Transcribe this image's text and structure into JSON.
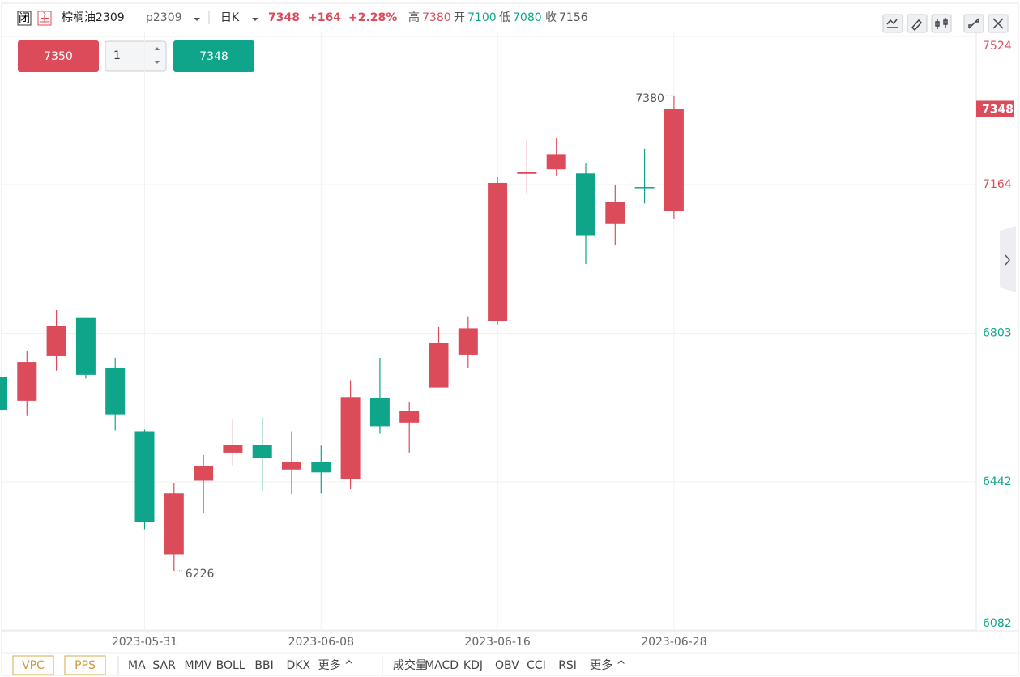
{
  "header": {
    "close_icon": "闭",
    "main_icon": "主",
    "name": "棕榈油2309",
    "code": "p2309",
    "period": "日K",
    "last": "7348",
    "change": "+164",
    "change_pct": "+2.28%",
    "high_label": "高",
    "high": "7380",
    "open_label": "开",
    "open": "7100",
    "low_label": "低",
    "low": "7080",
    "close_label": "收",
    "close": "7156"
  },
  "order": {
    "sell": "7350",
    "qty": "1",
    "buy": "7348"
  },
  "chart_data": {
    "type": "candlestick",
    "categories": [
      null,
      null,
      null,
      null,
      null,
      "2023-05-31",
      null,
      null,
      null,
      null,
      null,
      "2023-06-08",
      null,
      null,
      null,
      null,
      null,
      "2023-06-16",
      null,
      null,
      null,
      null,
      null,
      "2023-06-28"
    ],
    "open": [
      6697,
      6639,
      6749,
      6840,
      6718,
      6565,
      6266,
      6445,
      6513,
      6532,
      6472,
      6490,
      6449,
      6646,
      6586,
      6671,
      6751,
      6832,
      7190,
      7201,
      7191,
      7070,
      7158,
      7100
    ],
    "high": [
      6697,
      6760,
      6859,
      6840,
      6743,
      6569,
      6440,
      6507,
      6594,
      6598,
      6565,
      6530,
      6689,
      6743,
      6637,
      6818,
      6844,
      7184,
      7273,
      7278,
      7217,
      7164,
      7251,
      7380
    ],
    "low": [
      6617,
      6602,
      6712,
      6693,
      6567,
      6327,
      6226,
      6366,
      6482,
      6420,
      6412,
      6414,
      6424,
      6559,
      6513,
      6671,
      6718,
      6824,
      7143,
      7186,
      6971,
      7017,
      7118,
      7080
    ],
    "close": [
      6617,
      6733,
      6820,
      6702,
      6606,
      6345,
      6414,
      6480,
      6532,
      6501,
      6490,
      6465,
      6648,
      6577,
      6615,
      6780,
      6815,
      7168,
      7195,
      7238,
      7041,
      7122,
      7156,
      7348
    ],
    "ylim": [
      6082,
      7524
    ],
    "yticks": [
      6082,
      6442,
      6803,
      7164,
      7524
    ],
    "last_price": 7348,
    "up_color": "#dc4b5a",
    "down_color": "#0ea58a",
    "grid": true
  },
  "toolbar": {
    "left": [
      "VPC",
      "PPS"
    ],
    "main": [
      "MA",
      "SAR",
      "MMV",
      "BOLL",
      "BBI",
      "DKX",
      "更多 ^"
    ],
    "sub": [
      "成交量",
      "MACD",
      "KDJ",
      "OBV",
      "CCI",
      "RSI",
      "更多 ^"
    ]
  }
}
